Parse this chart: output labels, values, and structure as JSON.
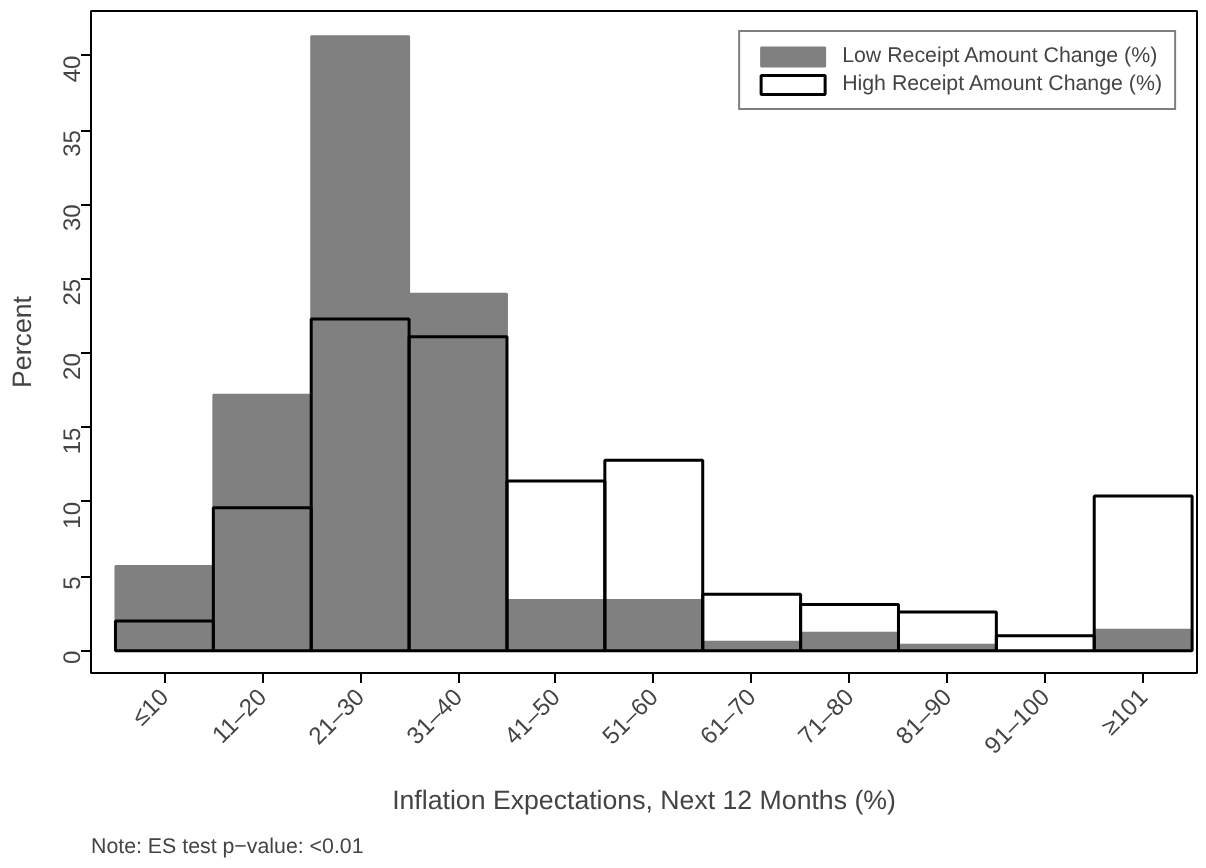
{
  "chart_data": {
    "type": "bar",
    "xlabel": "Inflation Expectations, Next 12 Months (%)",
    "ylabel": "Percent",
    "categories": [
      "≤10",
      "11–20",
      "21–30",
      "31–40",
      "41–50",
      "51–60",
      "61–70",
      "71–80",
      "81–90",
      "91–100",
      "≥101"
    ],
    "series": [
      {
        "name": "Low Receipt Amount Change (%)",
        "color": "#808080",
        "values": [
          5.7,
          17.2,
          41.3,
          24.0,
          3.4,
          3.4,
          0.6,
          1.2,
          0.4,
          null,
          1.4
        ]
      },
      {
        "name": "High Receipt Amount Change (%)",
        "color": "#000000",
        "values": [
          2.0,
          9.6,
          22.3,
          21.1,
          11.4,
          12.8,
          3.8,
          3.1,
          2.6,
          1.0,
          10.4
        ]
      }
    ],
    "ylim": [
      -1.5,
      43
    ],
    "yticks": [
      0,
      5,
      10,
      15,
      20,
      25,
      30,
      35,
      40
    ],
    "grid": false,
    "legend": "top right",
    "annotations": [
      "Note: ES test p−value: <0.01"
    ]
  }
}
